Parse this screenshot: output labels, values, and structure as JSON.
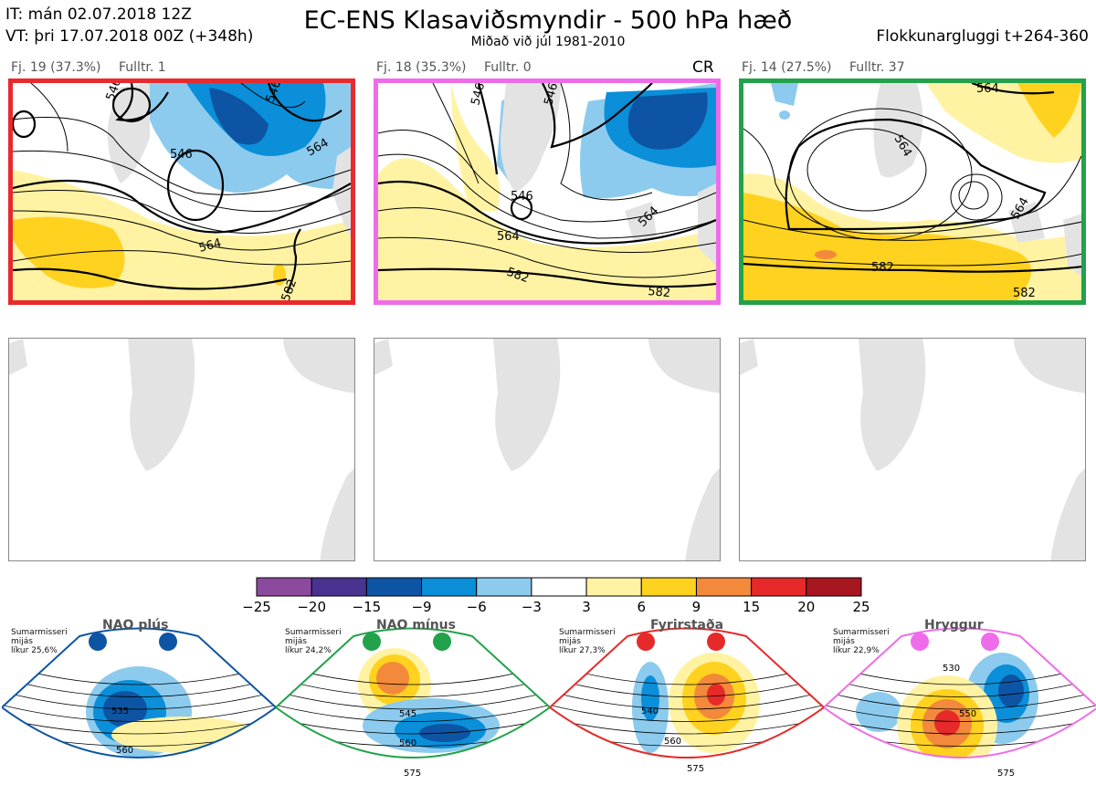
{
  "header": {
    "it_line": "IT: mán 02.07.2018 12Z",
    "vt_line": "VT: þri 17.07.2018 00Z  (+348h)",
    "title": "EC-ENS Klasaviðsmyndir - 500 hPa hæð",
    "subtitle": "Miðað við júl 1981-2010",
    "window": "Flokkunargluggi t+264-360"
  },
  "clusters": [
    {
      "label": "Fj. 19 (37.3%)",
      "control": "Fulltr. 1",
      "border_color": "#e8292e",
      "badge": "",
      "contours": [
        "546",
        "546",
        "546",
        "564",
        "564",
        "582"
      ]
    },
    {
      "label": "Fj. 18 (35.3%)",
      "control": "Fulltr. 0",
      "border_color": "#ee6ce9",
      "badge": "CR",
      "contours": [
        "546",
        "546",
        "546",
        "564",
        "564",
        "582",
        "582"
      ]
    },
    {
      "label": "Fj. 14 (27.5%)",
      "control": "Fulltr. 37",
      "border_color": "#22a24a",
      "badge": "",
      "contours": [
        "564",
        "564",
        "564",
        "582",
        "582"
      ]
    }
  ],
  "colorbar": {
    "ticks": [
      "−25",
      "−20",
      "−15",
      "−9",
      "−6",
      "−3",
      "3",
      "6",
      "9",
      "15",
      "20",
      "25"
    ],
    "colors": [
      "#8c4a9e",
      "#4a3291",
      "#0d55a4",
      "#0a8fd8",
      "#8ccbee",
      "#ffffff",
      "#fff3a3",
      "#ffd21f",
      "#f3893a",
      "#e62a2a",
      "#a81620"
    ]
  },
  "regimes": [
    {
      "name": "NAO plús",
      "note": [
        "Sumarmisseri",
        "mijás",
        "líkur 25,6%"
      ],
      "color": "#0d55a4",
      "contours": [
        "535",
        "560"
      ]
    },
    {
      "name": "NAO mínus",
      "note": [
        "Sumarmisseri",
        "mijás",
        "líkur 24,2%"
      ],
      "color": "#22a24a",
      "contours": [
        "545",
        "560",
        "575"
      ]
    },
    {
      "name": "Fyrirstaða",
      "note": [
        "Sumarmisseri",
        "mijás",
        "líkur 27,3%"
      ],
      "color": "#e62a2a",
      "contours": [
        "540",
        "560",
        "575"
      ]
    },
    {
      "name": "Hryggur",
      "note": [
        "Sumarmisseri",
        "mijás",
        "líkur 22,9%"
      ],
      "color": "#ee6ce9",
      "contours": [
        "530",
        "550",
        "575"
      ]
    }
  ]
}
